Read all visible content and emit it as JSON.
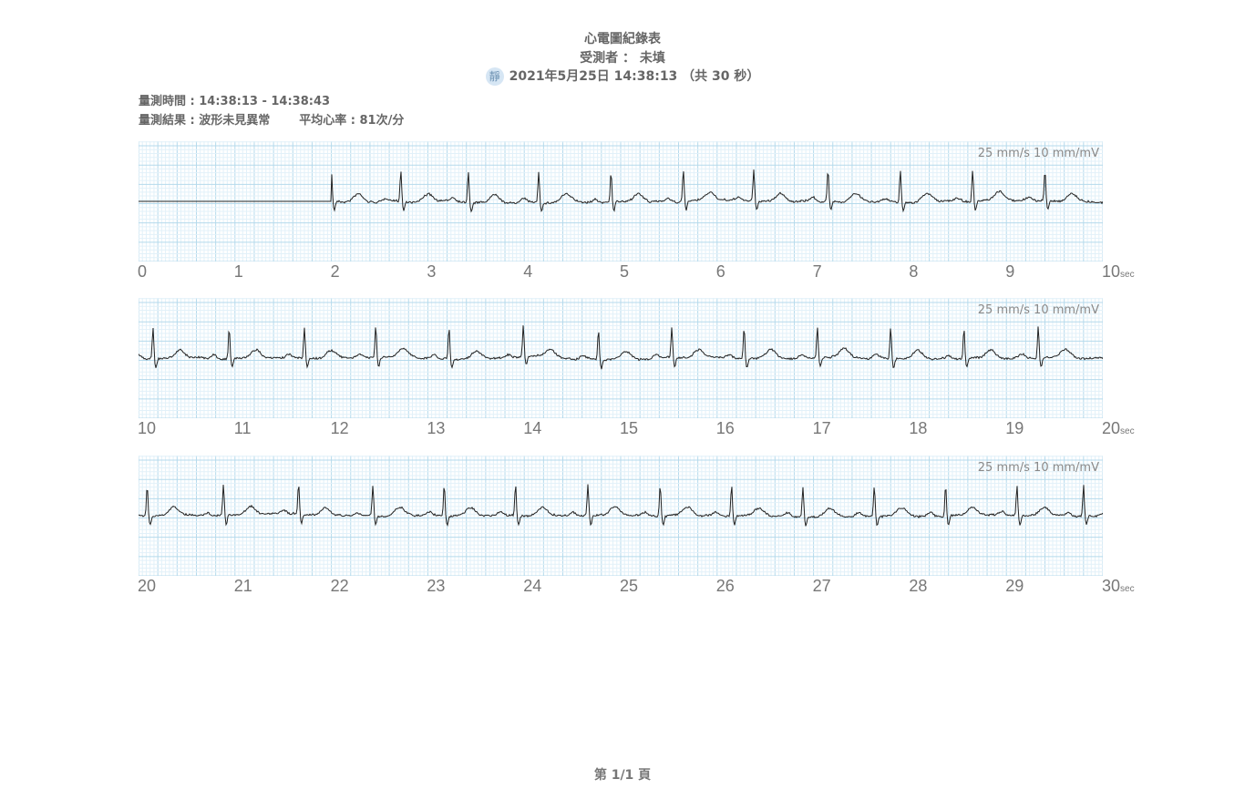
{
  "header": {
    "title": "心電圖紀錄表",
    "subject": "受測者 ： 未填",
    "mode_badge": "靜",
    "datetime": "2021年5月25日  14:38:13  （共 30 秒）"
  },
  "info": {
    "time_range": "量測時間 : 14:38:13 - 14:38:43",
    "result": "量測結果 : 波形未見異常",
    "avg_hr": "平均心率 : 81次/分"
  },
  "scale_label": "25 mm/s  10 mm/mV",
  "unit_label": "sec",
  "footer": "第 1/1 頁",
  "colors": {
    "grid_major": "#b5daec",
    "grid_minor": "#e2f1f9",
    "trace": "#222222"
  },
  "chart_data": [
    {
      "type": "line",
      "x_range": [
        0,
        10
      ],
      "xticks": [
        "0",
        "1",
        "2",
        "3",
        "4",
        "5",
        "6",
        "7",
        "8",
        "9",
        "10"
      ],
      "flat_until": 2.0,
      "r_peaks": [
        2.0,
        2.72,
        3.42,
        4.15,
        4.9,
        5.65,
        6.38,
        7.15,
        7.9,
        8.65,
        9.4
      ]
    },
    {
      "type": "line",
      "x_range": [
        10,
        20
      ],
      "xticks": [
        "10",
        "11",
        "12",
        "13",
        "14",
        "15",
        "16",
        "17",
        "18",
        "19",
        "20"
      ],
      "r_peaks": [
        10.15,
        10.94,
        11.72,
        12.46,
        13.22,
        13.99,
        14.77,
        15.53,
        16.28,
        17.04,
        17.8,
        18.56,
        19.33
      ]
    },
    {
      "type": "line",
      "x_range": [
        20,
        30
      ],
      "xticks": [
        "20",
        "21",
        "22",
        "23",
        "24",
        "25",
        "26",
        "27",
        "28",
        "29",
        "30"
      ],
      "r_peaks": [
        20.09,
        20.88,
        21.66,
        22.43,
        23.17,
        23.91,
        24.66,
        25.41,
        26.15,
        26.89,
        27.63,
        28.37,
        29.11,
        29.8
      ]
    }
  ]
}
